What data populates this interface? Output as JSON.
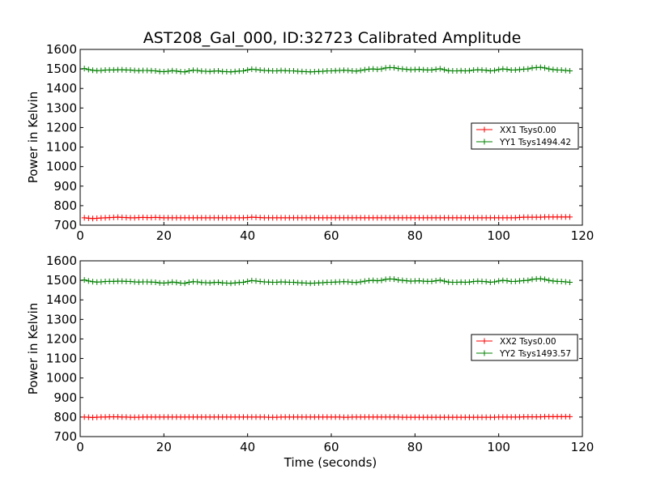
{
  "figure": {
    "title": "AST208_Gal_000, ID:32723 Calibrated Amplitude"
  },
  "colors": {
    "xx": "#ff0000",
    "yy": "#008000",
    "axes": "#000000",
    "background": "#ffffff"
  },
  "chart_data": [
    {
      "type": "line",
      "title": "AST208_Gal_000, ID:32723 Calibrated Amplitude",
      "xlabel": "",
      "ylabel": "Power in Kelvin",
      "xlim": [
        0,
        120
      ],
      "ylim": [
        700,
        1600
      ],
      "xticks": [
        "0",
        "20",
        "40",
        "60",
        "80",
        "100",
        "120"
      ],
      "yticks": [
        "700",
        "800",
        "900",
        "1000",
        "1100",
        "1200",
        "1300",
        "1400",
        "1500",
        "1600"
      ],
      "grid": false,
      "legend_position": "center-right",
      "marker": "plus",
      "series": [
        {
          "name": "XX1 Tsys0.00",
          "color": "#ff0000",
          "x": [
            1,
            2,
            3,
            4,
            5,
            6,
            7,
            8,
            9,
            10,
            11,
            12,
            13,
            14,
            15,
            16,
            17,
            18,
            19,
            20,
            21,
            22,
            23,
            24,
            25,
            26,
            27,
            28,
            29,
            30,
            31,
            32,
            33,
            34,
            35,
            36,
            37,
            38,
            39,
            40,
            41,
            42,
            43,
            44,
            45,
            46,
            47,
            48,
            49,
            50,
            51,
            52,
            53,
            54,
            55,
            56,
            57,
            58,
            59,
            60,
            61,
            62,
            63,
            64,
            65,
            66,
            67,
            68,
            69,
            70,
            71,
            72,
            73,
            74,
            75,
            76,
            77,
            78,
            79,
            80,
            81,
            82,
            83,
            84,
            85,
            86,
            87,
            88,
            89,
            90,
            91,
            92,
            93,
            94,
            95,
            96,
            97,
            98,
            99,
            100,
            101,
            102,
            103,
            104,
            105,
            106,
            107,
            108,
            109,
            110,
            111,
            112,
            113,
            114,
            115,
            116,
            117
          ],
          "y": [
            738,
            736,
            734,
            735,
            737,
            738,
            739,
            740,
            741,
            740,
            739,
            738,
            738,
            739,
            740,
            739,
            739,
            740,
            739,
            738,
            738,
            738,
            738,
            738,
            738,
            738,
            738,
            738,
            738,
            738,
            738,
            738,
            738,
            738,
            738,
            738,
            738,
            738,
            738,
            739,
            741,
            740,
            739,
            738,
            738,
            738,
            738,
            738,
            738,
            738,
            738,
            738,
            738,
            738,
            738,
            738,
            738,
            738,
            738,
            738,
            738,
            738,
            738,
            738,
            738,
            738,
            738,
            738,
            738,
            738,
            738,
            738,
            738,
            738,
            738,
            738,
            738,
            738,
            738,
            738,
            738,
            738,
            738,
            738,
            738,
            738,
            738,
            738,
            738,
            738,
            738,
            738,
            738,
            738,
            738,
            738,
            738,
            738,
            738,
            738,
            738,
            738,
            738,
            738,
            740,
            741,
            741,
            741,
            741,
            741,
            742,
            742,
            742,
            742,
            742,
            742,
            742
          ]
        },
        {
          "name": "YY1 Tsys1494.42",
          "color": "#008000",
          "x": [
            1,
            2,
            3,
            4,
            5,
            6,
            7,
            8,
            9,
            10,
            11,
            12,
            13,
            14,
            15,
            16,
            17,
            18,
            19,
            20,
            21,
            22,
            23,
            24,
            25,
            26,
            27,
            28,
            29,
            30,
            31,
            32,
            33,
            34,
            35,
            36,
            37,
            38,
            39,
            40,
            41,
            42,
            43,
            44,
            45,
            46,
            47,
            48,
            49,
            50,
            51,
            52,
            53,
            54,
            55,
            56,
            57,
            58,
            59,
            60,
            61,
            62,
            63,
            64,
            65,
            66,
            67,
            68,
            69,
            70,
            71,
            72,
            73,
            74,
            75,
            76,
            77,
            78,
            79,
            80,
            81,
            82,
            83,
            84,
            85,
            86,
            87,
            88,
            89,
            90,
            91,
            92,
            93,
            94,
            95,
            96,
            97,
            98,
            99,
            100,
            101,
            102,
            103,
            104,
            105,
            106,
            107,
            108,
            109,
            110,
            111,
            112,
            113,
            114,
            115,
            116,
            117
          ],
          "y": [
            1502,
            1497,
            1493,
            1491,
            1492,
            1494,
            1495,
            1495,
            1496,
            1496,
            1495,
            1494,
            1492,
            1491,
            1492,
            1492,
            1491,
            1490,
            1487,
            1486,
            1488,
            1491,
            1489,
            1486,
            1485,
            1490,
            1493,
            1492,
            1489,
            1488,
            1487,
            1489,
            1490,
            1487,
            1486,
            1485,
            1487,
            1489,
            1490,
            1495,
            1499,
            1497,
            1494,
            1492,
            1491,
            1490,
            1490,
            1492,
            1491,
            1490,
            1490,
            1488,
            1487,
            1486,
            1485,
            1486,
            1487,
            1488,
            1490,
            1490,
            1491,
            1492,
            1493,
            1492,
            1490,
            1489,
            1492,
            1496,
            1499,
            1500,
            1498,
            1500,
            1505,
            1507,
            1506,
            1502,
            1500,
            1498,
            1496,
            1497,
            1498,
            1496,
            1495,
            1495,
            1498,
            1501,
            1496,
            1491,
            1490,
            1490,
            1491,
            1490,
            1491,
            1494,
            1496,
            1495,
            1493,
            1490,
            1492,
            1497,
            1500,
            1498,
            1494,
            1495,
            1497,
            1499,
            1500,
            1505,
            1507,
            1508,
            1505,
            1500,
            1497,
            1495,
            1494,
            1492,
            1490
          ]
        }
      ]
    },
    {
      "type": "line",
      "title": "",
      "xlabel": "Time (seconds)",
      "ylabel": "Power in Kelvin",
      "xlim": [
        0,
        120
      ],
      "ylim": [
        700,
        1600
      ],
      "xticks": [
        "0",
        "20",
        "40",
        "60",
        "80",
        "100",
        "120"
      ],
      "yticks": [
        "700",
        "800",
        "900",
        "1000",
        "1100",
        "1200",
        "1300",
        "1400",
        "1500",
        "1600"
      ],
      "grid": false,
      "legend_position": "center-right",
      "marker": "plus",
      "series": [
        {
          "name": "XX2 Tsys0.00",
          "color": "#ff0000",
          "x": [
            1,
            2,
            3,
            4,
            5,
            6,
            7,
            8,
            9,
            10,
            11,
            12,
            13,
            14,
            15,
            16,
            17,
            18,
            19,
            20,
            21,
            22,
            23,
            24,
            25,
            26,
            27,
            28,
            29,
            30,
            31,
            32,
            33,
            34,
            35,
            36,
            37,
            38,
            39,
            40,
            41,
            42,
            43,
            44,
            45,
            46,
            47,
            48,
            49,
            50,
            51,
            52,
            53,
            54,
            55,
            56,
            57,
            58,
            59,
            60,
            61,
            62,
            63,
            64,
            65,
            66,
            67,
            68,
            69,
            70,
            71,
            72,
            73,
            74,
            75,
            76,
            77,
            78,
            79,
            80,
            81,
            82,
            83,
            84,
            85,
            86,
            87,
            88,
            89,
            90,
            91,
            92,
            93,
            94,
            95,
            96,
            97,
            98,
            99,
            100,
            101,
            102,
            103,
            104,
            105,
            106,
            107,
            108,
            109,
            110,
            111,
            112,
            113,
            114,
            115,
            116,
            117
          ],
          "y": [
            800,
            799,
            798,
            799,
            800,
            800,
            801,
            801,
            801,
            800,
            800,
            799,
            799,
            799,
            800,
            800,
            800,
            800,
            800,
            800,
            800,
            800,
            800,
            800,
            800,
            800,
            800,
            800,
            800,
            800,
            800,
            800,
            800,
            800,
            800,
            800,
            800,
            800,
            800,
            800,
            800,
            800,
            800,
            800,
            799,
            799,
            799,
            800,
            800,
            800,
            800,
            800,
            800,
            800,
            800,
            800,
            800,
            800,
            800,
            800,
            800,
            800,
            799,
            799,
            800,
            800,
            800,
            800,
            800,
            800,
            800,
            800,
            800,
            800,
            800,
            800,
            799,
            799,
            799,
            799,
            799,
            799,
            799,
            799,
            799,
            799,
            799,
            799,
            799,
            799,
            799,
            799,
            799,
            799,
            799,
            799,
            799,
            799,
            799,
            800,
            800,
            800,
            800,
            800,
            800,
            801,
            801,
            801,
            801,
            801,
            802,
            802,
            802,
            802,
            802,
            802,
            802
          ]
        },
        {
          "name": "YY2 Tsys1493.57",
          "color": "#008000",
          "x": [
            1,
            2,
            3,
            4,
            5,
            6,
            7,
            8,
            9,
            10,
            11,
            12,
            13,
            14,
            15,
            16,
            17,
            18,
            19,
            20,
            21,
            22,
            23,
            24,
            25,
            26,
            27,
            28,
            29,
            30,
            31,
            32,
            33,
            34,
            35,
            36,
            37,
            38,
            39,
            40,
            41,
            42,
            43,
            44,
            45,
            46,
            47,
            48,
            49,
            50,
            51,
            52,
            53,
            54,
            55,
            56,
            57,
            58,
            59,
            60,
            61,
            62,
            63,
            64,
            65,
            66,
            67,
            68,
            69,
            70,
            71,
            72,
            73,
            74,
            75,
            76,
            77,
            78,
            79,
            80,
            81,
            82,
            83,
            84,
            85,
            86,
            87,
            88,
            89,
            90,
            91,
            92,
            93,
            94,
            95,
            96,
            97,
            98,
            99,
            100,
            101,
            102,
            103,
            104,
            105,
            106,
            107,
            108,
            109,
            110,
            111,
            112,
            113,
            114,
            115,
            116,
            117
          ],
          "y": [
            1502,
            1497,
            1493,
            1491,
            1492,
            1494,
            1495,
            1495,
            1496,
            1496,
            1495,
            1494,
            1492,
            1491,
            1492,
            1492,
            1491,
            1490,
            1487,
            1486,
            1488,
            1491,
            1489,
            1486,
            1485,
            1490,
            1493,
            1492,
            1489,
            1488,
            1487,
            1489,
            1490,
            1487,
            1486,
            1485,
            1487,
            1489,
            1490,
            1495,
            1499,
            1497,
            1494,
            1492,
            1491,
            1490,
            1490,
            1492,
            1491,
            1490,
            1490,
            1488,
            1487,
            1486,
            1485,
            1486,
            1487,
            1488,
            1490,
            1490,
            1491,
            1492,
            1493,
            1492,
            1490,
            1489,
            1492,
            1496,
            1499,
            1500,
            1498,
            1500,
            1505,
            1507,
            1506,
            1502,
            1500,
            1498,
            1496,
            1497,
            1498,
            1496,
            1495,
            1495,
            1498,
            1501,
            1496,
            1491,
            1490,
            1490,
            1491,
            1490,
            1491,
            1494,
            1496,
            1495,
            1493,
            1490,
            1492,
            1497,
            1500,
            1498,
            1494,
            1495,
            1497,
            1499,
            1500,
            1505,
            1507,
            1508,
            1505,
            1500,
            1497,
            1495,
            1494,
            1492,
            1490
          ]
        }
      ]
    }
  ]
}
